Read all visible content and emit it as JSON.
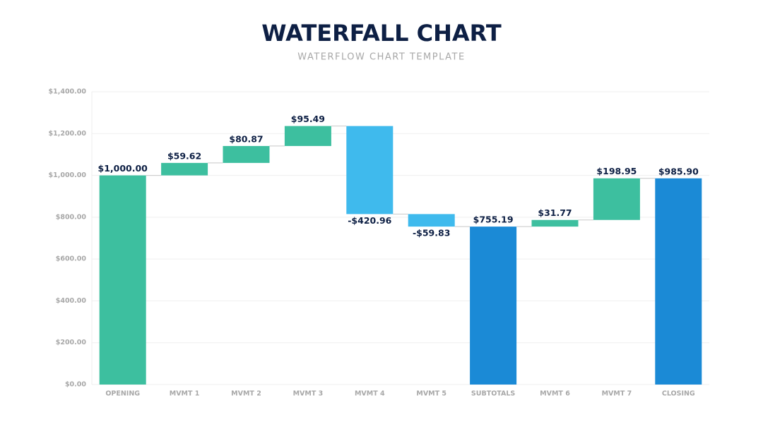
{
  "chart_data": {
    "type": "waterfall",
    "title": "WATERFALL CHART",
    "subtitle": "WATERFLOW CHART TEMPLATE",
    "categories": [
      "OPENING",
      "MVMT 1",
      "MVMT 2",
      "MVMT 3",
      "MVMT 4",
      "MVMT 5",
      "SUBTOTALS",
      "MVMT 6",
      "MVMT 7",
      "CLOSING"
    ],
    "values": [
      1000,
      59.62,
      80.87,
      95.49,
      -420.96,
      -59.83,
      755.19,
      31.77,
      198.95,
      985.9
    ],
    "value_labels": [
      "$1,000.00",
      "$59.62",
      "$80.87",
      "$95.49",
      "-$420.96",
      "-$59.83",
      "$755.19",
      "$31.77",
      "$198.95",
      "$985.90"
    ],
    "is_total": [
      true,
      false,
      false,
      false,
      false,
      false,
      true,
      false,
      false,
      true
    ],
    "colors": [
      "#3dbf9f",
      "#3dbf9f",
      "#3dbf9f",
      "#3dbf9f",
      "#3fbaed",
      "#3fbaed",
      "#1b8ad6",
      "#3dbf9f",
      "#3dbf9f",
      "#1b8ad6"
    ],
    "ylim": [
      0,
      1400
    ],
    "yticks": [
      {
        "value": 0,
        "label": "$0.00"
      },
      {
        "value": 200,
        "label": "$200.00"
      },
      {
        "value": 400,
        "label": "$400.00"
      },
      {
        "value": 600,
        "label": "$600.00"
      },
      {
        "value": 800,
        "label": "$800.00"
      },
      {
        "value": 1000,
        "label": "$1,000.00"
      },
      {
        "value": 1200,
        "label": "$1,200.00"
      },
      {
        "value": 1400,
        "label": "$1,400.00"
      }
    ],
    "grid": true
  }
}
